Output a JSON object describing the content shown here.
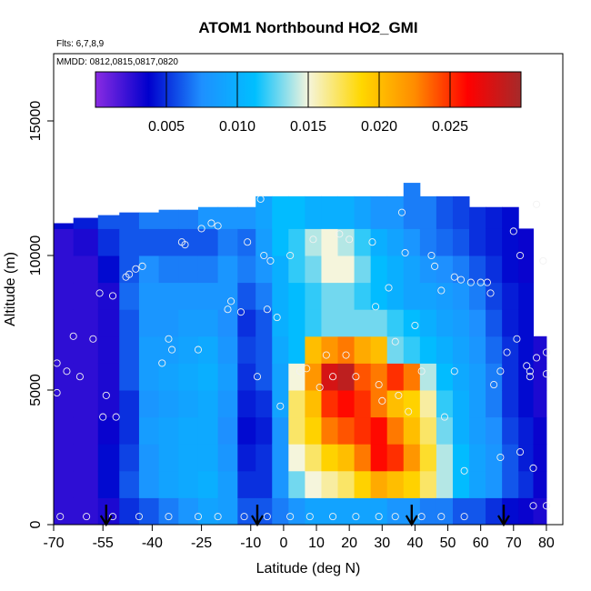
{
  "chart_data": {
    "type": "heatmap",
    "title": "ATOM1 Northbound HO2_GMI",
    "flights_note": "Flts: 6,7,8,9",
    "dates_note": "MMDD: 0812,0815,0817,0820",
    "xlabel": "Latitude (deg N)",
    "ylabel": "Altitude (m)",
    "xlim": [
      -70,
      85
    ],
    "ylim": [
      0,
      17500
    ],
    "x_ticks": [
      -70,
      -55,
      -40,
      -25,
      -10,
      0,
      10,
      20,
      30,
      40,
      50,
      60,
      70,
      80
    ],
    "x_tick_labels": [
      "-70",
      "-55",
      "-40",
      "-25",
      "-10",
      "0",
      "10",
      "20",
      "30",
      "40",
      "50",
      "60",
      "70",
      "80"
    ],
    "y_ticks": [
      0,
      5000,
      10000,
      15000
    ],
    "y_tick_labels": [
      "0",
      "5000",
      "10000",
      "15000"
    ],
    "colorbar": {
      "range": [
        0,
        0.03
      ],
      "ticks": [
        0.005,
        0.01,
        0.015,
        0.02,
        0.025
      ],
      "tick_labels": [
        "0.005",
        "0.010",
        "0.015",
        "0.020",
        "0.025"
      ],
      "colors": [
        "#8a2be2",
        "#0000cd",
        "#1e90ff",
        "#00bfff",
        "#f5f5dc",
        "#ffd700",
        "#ff8c00",
        "#ff0000",
        "#a52a2a"
      ]
    },
    "columns": [
      {
        "lat": -68,
        "top": 11200,
        "values": [
          0.0025,
          0.0025,
          0.0025,
          0.0025,
          0.0025,
          0.0025,
          0.0025,
          0.0025,
          0.0025,
          0.0025,
          0.0025,
          0.004
        ]
      },
      {
        "lat": -60,
        "top": 11400,
        "values": [
          0.0025,
          0.0025,
          0.0025,
          0.0025,
          0.0025,
          0.0025,
          0.0025,
          0.0025,
          0.0025,
          0.0025,
          0.003,
          0.0045
        ]
      },
      {
        "lat": -53,
        "top": 11500,
        "values": [
          0.003,
          0.004,
          0.004,
          0.0035,
          0.003,
          0.003,
          0.003,
          0.003,
          0.003,
          0.004,
          0.005,
          0.006
        ]
      },
      {
        "lat": -47,
        "top": 11600,
        "values": [
          0.005,
          0.006,
          0.0055,
          0.005,
          0.005,
          0.006,
          0.006,
          0.006,
          0.0065,
          0.006,
          0.006,
          0.006
        ]
      },
      {
        "lat": -41,
        "top": 11600,
        "values": [
          0.006,
          0.008,
          0.008,
          0.0085,
          0.008,
          0.0085,
          0.0085,
          0.008,
          0.008,
          0.0075,
          0.006,
          0.007
        ]
      },
      {
        "lat": -35,
        "top": 11700,
        "values": [
          0.007,
          0.009,
          0.009,
          0.009,
          0.0085,
          0.009,
          0.0085,
          0.008,
          0.008,
          0.007,
          0.006,
          0.007
        ]
      },
      {
        "lat": -29,
        "top": 11700,
        "values": [
          0.008,
          0.0095,
          0.0095,
          0.0095,
          0.009,
          0.0095,
          0.009,
          0.0085,
          0.008,
          0.007,
          0.006,
          0.007
        ]
      },
      {
        "lat": -23,
        "top": 11800,
        "values": [
          0.009,
          0.01,
          0.0095,
          0.0095,
          0.0095,
          0.01,
          0.0095,
          0.0085,
          0.008,
          0.007,
          0.006,
          0.008
        ]
      },
      {
        "lat": -17,
        "top": 11800,
        "values": [
          0.0085,
          0.0085,
          0.008,
          0.0075,
          0.008,
          0.0085,
          0.008,
          0.0075,
          0.008,
          0.008,
          0.007,
          0.008
        ]
      },
      {
        "lat": -11,
        "top": 11800,
        "values": [
          0.006,
          0.005,
          0.0045,
          0.004,
          0.0045,
          0.005,
          0.0055,
          0.005,
          0.006,
          0.007,
          0.0065,
          0.008
        ]
      },
      {
        "lat": -6,
        "top": 12200,
        "values": [
          0.006,
          0.005,
          0.005,
          0.0045,
          0.005,
          0.006,
          0.006,
          0.006,
          0.007,
          0.008,
          0.0085,
          0.009
        ]
      },
      {
        "lat": -1,
        "top": 12200,
        "values": [
          0.007,
          0.008,
          0.008,
          0.008,
          0.009,
          0.009,
          0.0095,
          0.01,
          0.01,
          0.01,
          0.011,
          0.011
        ]
      },
      {
        "lat": 4,
        "top": 12200,
        "values": [
          0.008,
          0.013,
          0.015,
          0.017,
          0.017,
          0.015,
          0.011,
          0.011,
          0.011,
          0.012,
          0.012,
          0.011
        ]
      },
      {
        "lat": 9,
        "top": 12200,
        "values": [
          0.009,
          0.015,
          0.017,
          0.019,
          0.02,
          0.022,
          0.02,
          0.012,
          0.012,
          0.013,
          0.014,
          0.01
        ]
      },
      {
        "lat": 14,
        "top": 12200,
        "values": [
          0.009,
          0.016,
          0.019,
          0.023,
          0.025,
          0.028,
          0.022,
          0.013,
          0.013,
          0.015,
          0.015,
          0.01
        ]
      },
      {
        "lat": 19,
        "top": 12200,
        "values": [
          0.009,
          0.017,
          0.02,
          0.024,
          0.026,
          0.029,
          0.023,
          0.013,
          0.013,
          0.015,
          0.014,
          0.01
        ]
      },
      {
        "lat": 24,
        "top": 12200,
        "values": [
          0.009,
          0.019,
          0.023,
          0.025,
          0.025,
          0.024,
          0.021,
          0.013,
          0.012,
          0.013,
          0.012,
          0.009
        ]
      },
      {
        "lat": 29,
        "top": 12200,
        "values": [
          0.009,
          0.021,
          0.026,
          0.026,
          0.023,
          0.023,
          0.02,
          0.013,
          0.011,
          0.011,
          0.01,
          0.008
        ]
      },
      {
        "lat": 34,
        "top": 12200,
        "values": [
          0.008,
          0.02,
          0.025,
          0.023,
          0.02,
          0.025,
          0.013,
          0.012,
          0.01,
          0.01,
          0.009,
          0.008
        ]
      },
      {
        "lat": 39,
        "top": 12700,
        "values": [
          0.008,
          0.019,
          0.022,
          0.02,
          0.019,
          0.023,
          0.012,
          0.011,
          0.009,
          0.009,
          0.008,
          0.007
        ]
      },
      {
        "lat": 44,
        "top": 12200,
        "values": [
          0.007,
          0.017,
          0.018,
          0.017,
          0.016,
          0.014,
          0.011,
          0.01,
          0.009,
          0.008,
          0.007,
          0.007
        ]
      },
      {
        "lat": 49,
        "top": 12200,
        "values": [
          0.007,
          0.014,
          0.014,
          0.013,
          0.012,
          0.011,
          0.01,
          0.009,
          0.0085,
          0.0075,
          0.0065,
          0.006
        ]
      },
      {
        "lat": 54,
        "top": 12200,
        "values": [
          0.006,
          0.011,
          0.011,
          0.01,
          0.01,
          0.0095,
          0.009,
          0.0085,
          0.008,
          0.007,
          0.006,
          0.0055
        ]
      },
      {
        "lat": 59,
        "top": 11800,
        "values": [
          0.006,
          0.009,
          0.009,
          0.0085,
          0.0085,
          0.0085,
          0.008,
          0.0075,
          0.007,
          0.006,
          0.005,
          0.005
        ]
      },
      {
        "lat": 64,
        "top": 11800,
        "values": [
          0.005,
          0.008,
          0.008,
          0.0075,
          0.007,
          0.007,
          0.0065,
          0.006,
          0.0055,
          0.005,
          0.0045,
          0.0045
        ]
      },
      {
        "lat": 69,
        "top": 11800,
        "values": [
          0.004,
          0.006,
          0.006,
          0.0055,
          0.005,
          0.005,
          0.005,
          0.0045,
          0.0045,
          0.004,
          0.004,
          0.004
        ]
      },
      {
        "lat": 74,
        "top": 11000,
        "values": [
          0.0035,
          0.005,
          0.0045,
          0.0045,
          0.004,
          0.004,
          0.004,
          0.004,
          0.004,
          0.0035,
          0.0035,
          0.0035
        ]
      },
      {
        "lat": 78,
        "top": 7000,
        "values": [
          0.003,
          0.0035,
          0.0035,
          0.0035,
          0.003,
          0.003,
          0.003,
          0.003
        ]
      }
    ],
    "observations": [
      [
        -69,
        6000
      ],
      [
        -69,
        4900
      ],
      [
        -66,
        5700
      ],
      [
        -64,
        7000
      ],
      [
        -62,
        5500
      ],
      [
        -58,
        6900
      ],
      [
        -56,
        8600
      ],
      [
        -54,
        4800
      ],
      [
        -55,
        4000
      ],
      [
        -52,
        8500
      ],
      [
        -51,
        4000
      ],
      [
        -48,
        9200
      ],
      [
        -47,
        9300
      ],
      [
        -45,
        9500
      ],
      [
        -43,
        9600
      ],
      [
        -37,
        6000
      ],
      [
        -35,
        6900
      ],
      [
        -34,
        6500
      ],
      [
        -31,
        10500
      ],
      [
        -30,
        10400
      ],
      [
        -26,
        6500
      ],
      [
        -25,
        11000
      ],
      [
        -22,
        11200
      ],
      [
        -20,
        11100
      ],
      [
        -17,
        8000
      ],
      [
        -16,
        8300
      ],
      [
        -13,
        7900
      ],
      [
        -11,
        10500
      ],
      [
        -8,
        5500
      ],
      [
        -7,
        12100
      ],
      [
        -6,
        10000
      ],
      [
        -5,
        8000
      ],
      [
        -4,
        9800
      ],
      [
        -2,
        7700
      ],
      [
        -1,
        4400
      ],
      [
        2,
        10000
      ],
      [
        5,
        5700
      ],
      [
        7,
        5800
      ],
      [
        9,
        10600
      ],
      [
        11,
        5100
      ],
      [
        13,
        6300
      ],
      [
        15,
        5500
      ],
      [
        17,
        10800
      ],
      [
        19,
        6300
      ],
      [
        20,
        10600
      ],
      [
        22,
        5500
      ],
      [
        27,
        10500
      ],
      [
        28,
        8100
      ],
      [
        29,
        5200
      ],
      [
        30,
        4600
      ],
      [
        32,
        8800
      ],
      [
        34,
        6800
      ],
      [
        35,
        4800
      ],
      [
        36,
        11600
      ],
      [
        37,
        10100
      ],
      [
        38,
        4200
      ],
      [
        40,
        7400
      ],
      [
        42,
        5700
      ],
      [
        45,
        10000
      ],
      [
        46,
        9600
      ],
      [
        48,
        8700
      ],
      [
        49,
        4000
      ],
      [
        52,
        9200
      ],
      [
        52,
        5700
      ],
      [
        54,
        9100
      ],
      [
        55,
        2000
      ],
      [
        57,
        9000
      ],
      [
        60,
        9000
      ],
      [
        62,
        9000
      ],
      [
        63,
        8600
      ],
      [
        64,
        5200
      ],
      [
        66,
        5700
      ],
      [
        66,
        2500
      ],
      [
        68,
        6400
      ],
      [
        70,
        10900
      ],
      [
        71,
        6900
      ],
      [
        72,
        10000
      ],
      [
        72,
        2700
      ],
      [
        74,
        5900
      ],
      [
        75,
        5700
      ],
      [
        75,
        5500
      ],
      [
        76,
        2100
      ],
      [
        76,
        700
      ],
      [
        77,
        11900
      ],
      [
        77,
        6200
      ],
      [
        79,
        9800
      ],
      [
        80,
        6400
      ],
      [
        80,
        5600
      ],
      [
        80,
        700
      ],
      [
        -68,
        300
      ],
      [
        -60,
        300
      ],
      [
        -52,
        300
      ],
      [
        -44,
        300
      ],
      [
        -35,
        300
      ],
      [
        -26,
        300
      ],
      [
        -20,
        300
      ],
      [
        -12,
        300
      ],
      [
        -5,
        300
      ],
      [
        2,
        300
      ],
      [
        8,
        300
      ],
      [
        15,
        300
      ],
      [
        22,
        300
      ],
      [
        29,
        300
      ],
      [
        34,
        300
      ],
      [
        42,
        300
      ],
      [
        48,
        300
      ],
      [
        55,
        300
      ]
    ],
    "arrow_markers": [
      -54,
      -8,
      39,
      67
    ]
  }
}
